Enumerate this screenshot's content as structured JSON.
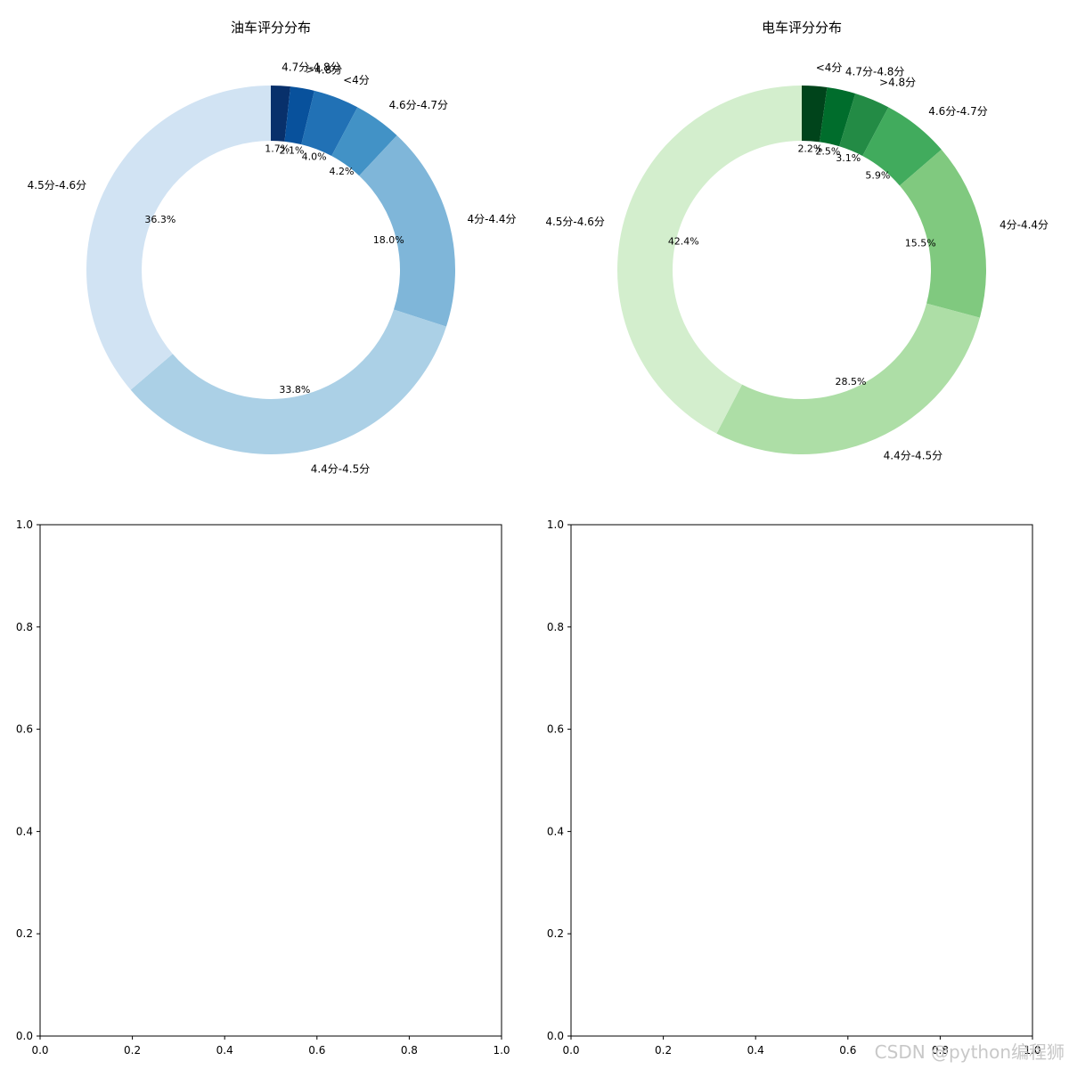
{
  "chart_data": [
    {
      "type": "pie",
      "style": "donut",
      "title": "油车评分分布",
      "colormap": "Blues",
      "categories": [
        "4.7分-4.8分",
        ">4.8分",
        "<4分",
        "4.6分-4.7分",
        "4分-4.4分",
        "4.4分-4.5分",
        "4.5分-4.6分"
      ],
      "values": [
        1.7,
        2.1,
        4.0,
        4.2,
        18.0,
        33.8,
        36.3
      ],
      "percent_labels": [
        "1.7%",
        "2.1%",
        "4.0%",
        "4.2%",
        "18.0%",
        "33.8%",
        "36.3%"
      ],
      "colors": [
        "#08306b",
        "#08519c",
        "#2171b5",
        "#4292c6",
        "#7fb6d9",
        "#abd0e6",
        "#d1e3f3"
      ],
      "start_angle": 90,
      "direction": "clockwise"
    },
    {
      "type": "pie",
      "style": "donut",
      "title": "电车评分分布",
      "colormap": "Greens",
      "categories": [
        "<4分",
        "4.7分-4.8分",
        ">4.8分",
        "4.6分-4.7分",
        "4分-4.4分",
        "4.4分-4.5分",
        "4.5分-4.6分"
      ],
      "values": [
        2.2,
        2.5,
        3.1,
        5.9,
        15.5,
        28.5,
        42.4
      ],
      "percent_labels": [
        "2.2%",
        "2.5%",
        "3.1%",
        "5.9%",
        "15.5%",
        "28.5%",
        "42.4%"
      ],
      "colors": [
        "#00441b",
        "#006d2c",
        "#238b45",
        "#41ab5d",
        "#80c97f",
        "#addea6",
        "#d3eecd"
      ],
      "start_angle": 90,
      "direction": "clockwise"
    },
    {
      "type": "scatter",
      "title": "",
      "x": [],
      "y": [],
      "xlim": [
        0,
        1
      ],
      "ylim": [
        0,
        1
      ],
      "xticks": [
        "0.0",
        "0.2",
        "0.4",
        "0.6",
        "0.8",
        "1.0"
      ],
      "yticks": [
        "0.0",
        "0.2",
        "0.4",
        "0.6",
        "0.8",
        "1.0"
      ]
    },
    {
      "type": "scatter",
      "title": "",
      "x": [],
      "y": [],
      "xlim": [
        0,
        1
      ],
      "ylim": [
        0,
        1
      ],
      "xticks": [
        "0.0",
        "0.2",
        "0.4",
        "0.6",
        "0.8",
        "1.0"
      ],
      "yticks": [
        "0.0",
        "0.2",
        "0.4",
        "0.6",
        "0.8",
        "1.0"
      ]
    }
  ],
  "watermark": "CSDN @python编程狮"
}
